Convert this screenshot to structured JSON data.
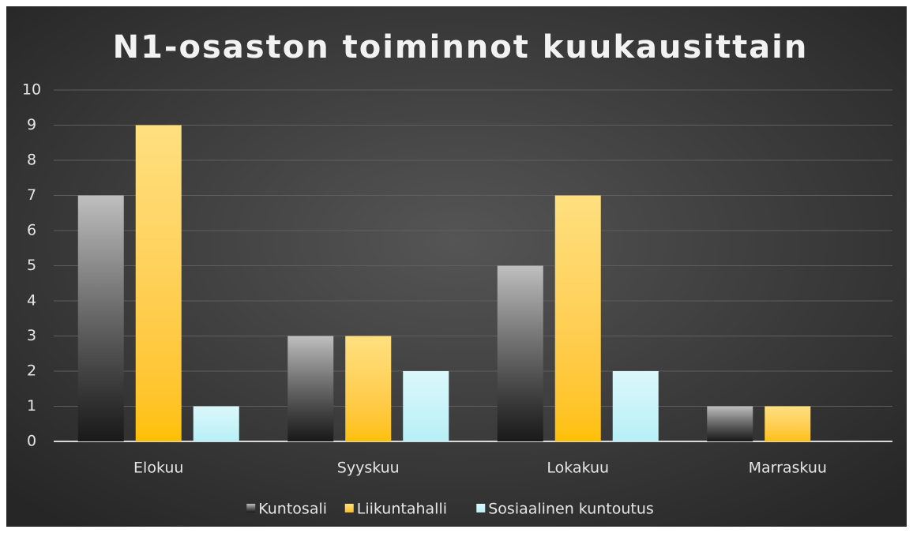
{
  "chart_data": {
    "type": "bar",
    "title": "N1-osaston toiminnot kuukausittain",
    "categories": [
      "Elokuu",
      "Syyskuu",
      "Lokakuu",
      "Marraskuu"
    ],
    "series": [
      {
        "name": "Kuntosali",
        "color": "#7f7f7f",
        "values": [
          7,
          3,
          5,
          1
        ]
      },
      {
        "name": "Liikuntahalli",
        "color": "#ffc000",
        "values": [
          9,
          3,
          7,
          1
        ]
      },
      {
        "name": "Sosiaalinen kuntoutus",
        "color": "#b7f0f7",
        "values": [
          1,
          2,
          2,
          0
        ]
      }
    ],
    "ylim": [
      0,
      10
    ],
    "yticks": [
      0,
      1,
      2,
      3,
      4,
      5,
      6,
      7,
      8,
      9,
      10
    ],
    "grid": true,
    "legend": "bottom"
  }
}
